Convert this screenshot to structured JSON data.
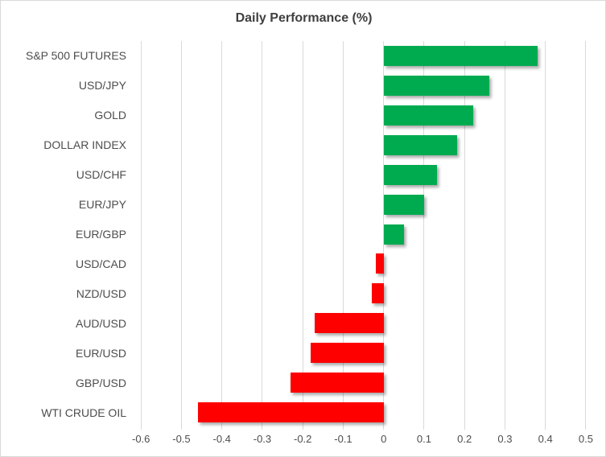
{
  "chart_data": {
    "type": "bar",
    "orientation": "horizontal",
    "title": "Daily Performance (%)",
    "categories": [
      "S&P 500 FUTURES",
      "USD/JPY",
      "GOLD",
      "DOLLAR INDEX",
      "USD/CHF",
      "EUR/JPY",
      "EUR/GBP",
      "USD/CAD",
      "NZD/USD",
      "AUD/USD",
      "EUR/USD",
      "GBP/USD",
      "WTI CRUDE OIL"
    ],
    "values": [
      0.38,
      0.26,
      0.22,
      0.18,
      0.13,
      0.1,
      0.05,
      -0.02,
      -0.03,
      -0.17,
      -0.18,
      -0.23,
      -0.46
    ],
    "xlabel": "",
    "ylabel": "",
    "xlim": [
      -0.6,
      0.5
    ],
    "xticks": [
      -0.6,
      -0.5,
      -0.4,
      -0.3,
      -0.2,
      -0.1,
      0,
      0.1,
      0.2,
      0.3,
      0.4,
      0.5
    ],
    "xtick_labels": [
      "-0.6",
      "-0.5",
      "-0.4",
      "-0.3",
      "-0.2",
      "-0.1",
      "0",
      "0.1",
      "0.2",
      "0.3",
      "0.4",
      "0.5"
    ],
    "grid": true,
    "legend": "none",
    "colors": {
      "positive_bar": "#00ab50",
      "negative_bar": "#fe0000",
      "gridline": "#d9d9d9",
      "title_text": "#3f3f3f",
      "label_text": "#4d4d4d",
      "chart_border": "#d9d9d9",
      "background": "#ffffff"
    }
  }
}
